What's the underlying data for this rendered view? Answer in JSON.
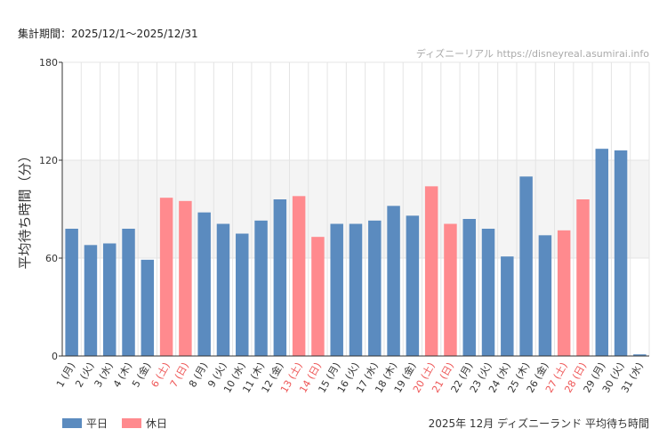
{
  "period_label": "集計期間：2025/12/1～2025/12/31",
  "watermark": "ディズニーリアル https://disneyreal.asumirai.info",
  "legend": {
    "weekday_label": "平日",
    "holiday_label": "休日"
  },
  "footer_title": "2025年 12月 ディズニーランド 平均待ち時間",
  "colors": {
    "weekday": "#5b8bbf",
    "holiday": "#ff8a8e",
    "holiday_text": "#ee5555",
    "band": "#f4f4f4",
    "grid": "#e4e4e4",
    "axis": "#333333"
  },
  "chart_data": {
    "type": "bar",
    "title": "2025年 12月 ディズニーランド 平均待ち時間",
    "ylabel": "平均待ち時間（分）",
    "xlabel": "",
    "ylim": [
      0,
      180
    ],
    "yticks": [
      0,
      60,
      120,
      180
    ],
    "shaded_band": [
      60,
      120
    ],
    "categories": [
      "1 (月)",
      "2 (火)",
      "3 (水)",
      "4 (木)",
      "5 (金)",
      "6 (土)",
      "7 (日)",
      "8 (月)",
      "9 (火)",
      "10 (水)",
      "11 (木)",
      "12 (金)",
      "13 (土)",
      "14 (日)",
      "15 (月)",
      "16 (火)",
      "17 (水)",
      "18 (木)",
      "19 (金)",
      "20 (土)",
      "21 (日)",
      "22 (月)",
      "23 (火)",
      "24 (水)",
      "25 (木)",
      "26 (金)",
      "27 (土)",
      "28 (日)",
      "29 (月)",
      "30 (火)",
      "31 (水)"
    ],
    "values": [
      78,
      68,
      69,
      78,
      59,
      97,
      95,
      88,
      81,
      75,
      83,
      96,
      98,
      73,
      81,
      81,
      83,
      92,
      86,
      104,
      81,
      84,
      78,
      61,
      110,
      74,
      77,
      96,
      127,
      126,
      1
    ],
    "day_type": [
      "weekday",
      "weekday",
      "weekday",
      "weekday",
      "weekday",
      "holiday",
      "holiday",
      "weekday",
      "weekday",
      "weekday",
      "weekday",
      "weekday",
      "holiday",
      "holiday",
      "weekday",
      "weekday",
      "weekday",
      "weekday",
      "weekday",
      "holiday",
      "holiday",
      "weekday",
      "weekday",
      "weekday",
      "weekday",
      "weekday",
      "holiday",
      "holiday",
      "weekday",
      "weekday",
      "weekday"
    ]
  }
}
